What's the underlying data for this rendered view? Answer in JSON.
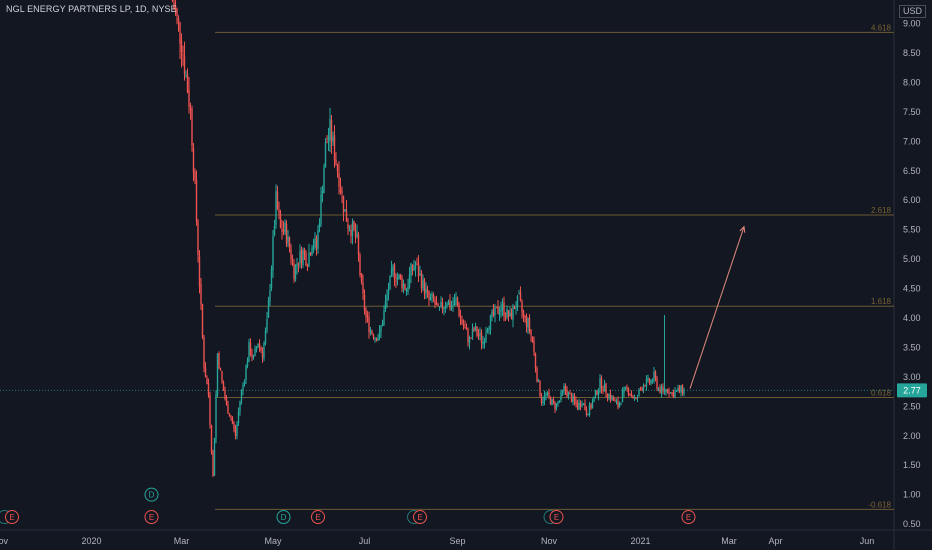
{
  "header": {
    "symbol_title": "NGL ENERGY PARTNERS LP, 1D, NYSE",
    "currency": "USD"
  },
  "colors": {
    "background": "#131722",
    "up": "#26a69a",
    "down": "#ef5350",
    "fib_line": "#6b5a33",
    "fib_label": "#7a6334",
    "last_price_line": "#26a69a",
    "arrow": "#e58a7c",
    "axis_text": "#b2b5be",
    "event_earnings": "#ef5350",
    "event_dividend": "#26a69a"
  },
  "chart_data": {
    "type": "candlestick",
    "symbol": "NGL ENERGY PARTNERS LP",
    "interval": "1D",
    "exchange": "NYSE",
    "ylim": [
      0.4,
      9.4
    ],
    "y_ticks": [
      "9.00",
      "8.50",
      "8.00",
      "7.50",
      "7.00",
      "6.50",
      "6.00",
      "5.50",
      "5.00",
      "4.50",
      "4.00",
      "3.50",
      "3.00",
      "2.50",
      "2.00",
      "1.50",
      "1.00",
      "0.50"
    ],
    "x_ticks": [
      {
        "label": "Nov",
        "day": 0
      },
      {
        "label": "2020",
        "day": 61
      },
      {
        "label": "Mar",
        "day": 121
      },
      {
        "label": "May",
        "day": 182
      },
      {
        "label": "Jul",
        "day": 243
      },
      {
        "label": "Sep",
        "day": 305
      },
      {
        "label": "Nov",
        "day": 366
      },
      {
        "label": "2021",
        "day": 427
      },
      {
        "label": "Mar",
        "day": 486
      },
      {
        "label": "Apr",
        "day": 517
      },
      {
        "label": "Jun",
        "day": 578
      }
    ],
    "x_max_day": 596,
    "last_price": "2.77",
    "fib_levels": [
      {
        "label": "4.618",
        "value": 8.85
      },
      {
        "label": "2.618",
        "value": 5.75
      },
      {
        "label": "1.618",
        "value": 4.2
      },
      {
        "label": "0.618",
        "value": 2.65
      },
      {
        "label": "-0.618",
        "value": 0.75
      }
    ],
    "arrow": {
      "from": {
        "day": 460,
        "value": 2.8
      },
      "to": {
        "day": 496,
        "value": 5.55
      }
    },
    "price_path": [
      [
        115,
        9.4
      ],
      [
        118,
        9.05
      ],
      [
        121,
        8.7
      ],
      [
        124,
        8.1
      ],
      [
        127,
        7.5
      ],
      [
        130,
        6.2
      ],
      [
        133,
        4.6
      ],
      [
        136,
        3.2
      ],
      [
        139,
        2.7
      ],
      [
        142,
        1.3
      ],
      [
        145,
        3.4
      ],
      [
        148,
        2.9
      ],
      [
        151,
        2.5
      ],
      [
        154,
        2.3
      ],
      [
        157,
        2.0
      ],
      [
        160,
        2.6
      ],
      [
        163,
        3.0
      ],
      [
        166,
        3.5
      ],
      [
        169,
        3.3
      ],
      [
        172,
        3.6
      ],
      [
        175,
        3.4
      ],
      [
        178,
        3.9
      ],
      [
        181,
        4.9
      ],
      [
        184,
        6.0
      ],
      [
        187,
        5.5
      ],
      [
        190,
        5.5
      ],
      [
        193,
        5.2
      ],
      [
        196,
        4.8
      ],
      [
        199,
        5.0
      ],
      [
        202,
        5.1
      ],
      [
        205,
        5.0
      ],
      [
        208,
        5.3
      ],
      [
        211,
        5.2
      ],
      [
        214,
        6.0
      ],
      [
        217,
        6.9
      ],
      [
        220,
        7.2
      ],
      [
        223,
        6.8
      ],
      [
        226,
        6.4
      ],
      [
        229,
        5.9
      ],
      [
        232,
        5.6
      ],
      [
        235,
        5.5
      ],
      [
        238,
        5.3
      ],
      [
        241,
        4.5
      ],
      [
        244,
        4.0
      ],
      [
        247,
        3.8
      ],
      [
        250,
        3.7
      ],
      [
        253,
        3.7
      ],
      [
        256,
        4.1
      ],
      [
        259,
        4.5
      ],
      [
        262,
        4.8
      ],
      [
        265,
        4.7
      ],
      [
        268,
        4.6
      ],
      [
        271,
        4.5
      ],
      [
        274,
        4.8
      ],
      [
        277,
        4.9
      ],
      [
        280,
        4.7
      ],
      [
        283,
        4.5
      ],
      [
        286,
        4.3
      ],
      [
        289,
        4.3
      ],
      [
        292,
        4.1
      ],
      [
        295,
        4.2
      ],
      [
        298,
        4.3
      ],
      [
        301,
        4.2
      ],
      [
        304,
        4.3
      ],
      [
        307,
        4.0
      ],
      [
        310,
        3.8
      ],
      [
        313,
        3.6
      ],
      [
        316,
        3.8
      ],
      [
        319,
        3.7
      ],
      [
        322,
        3.6
      ],
      [
        325,
        3.9
      ],
      [
        328,
        4.0
      ],
      [
        331,
        4.1
      ],
      [
        334,
        4.2
      ],
      [
        337,
        4.1
      ],
      [
        340,
        4.0
      ],
      [
        343,
        4.2
      ],
      [
        346,
        4.3
      ],
      [
        349,
        4.0
      ],
      [
        352,
        3.9
      ],
      [
        355,
        3.6
      ],
      [
        358,
        3.0
      ],
      [
        361,
        2.6
      ],
      [
        364,
        2.7
      ],
      [
        367,
        2.6
      ],
      [
        370,
        2.5
      ],
      [
        373,
        2.6
      ],
      [
        376,
        2.8
      ],
      [
        379,
        2.7
      ],
      [
        382,
        2.6
      ],
      [
        385,
        2.5
      ],
      [
        388,
        2.6
      ],
      [
        391,
        2.4
      ],
      [
        394,
        2.5
      ],
      [
        397,
        2.7
      ],
      [
        400,
        2.9
      ],
      [
        403,
        2.8
      ],
      [
        406,
        2.7
      ],
      [
        409,
        2.6
      ],
      [
        412,
        2.5
      ],
      [
        415,
        2.7
      ],
      [
        418,
        2.8
      ],
      [
        421,
        2.7
      ],
      [
        424,
        2.6
      ],
      [
        427,
        2.8
      ],
      [
        430,
        2.9
      ],
      [
        433,
        2.9
      ],
      [
        436,
        3.0
      ],
      [
        439,
        2.8
      ],
      [
        442,
        2.75
      ],
      [
        445,
        2.8
      ],
      [
        448,
        2.7
      ],
      [
        451,
        2.75
      ],
      [
        454,
        2.78
      ],
      [
        457,
        2.77
      ]
    ],
    "wick_outliers": [
      {
        "day": 443,
        "high": 4.05,
        "low": 2.7
      }
    ],
    "events": [
      {
        "type": "earnings",
        "letter": "E",
        "day": 8,
        "value": 0.62
      },
      {
        "type": "earnings",
        "letter": "E",
        "day": 101,
        "value": 0.62
      },
      {
        "type": "dividend",
        "letter": "D",
        "day": 101,
        "value": 1.0
      },
      {
        "type": "dividend",
        "letter": "D",
        "day": 189,
        "value": 0.62
      },
      {
        "type": "earnings",
        "letter": "E",
        "day": 212,
        "value": 0.62
      },
      {
        "type": "earnings",
        "letter": "E",
        "day": 280,
        "value": 0.62
      },
      {
        "type": "earnings",
        "letter": "E",
        "day": 371,
        "value": 0.62
      },
      {
        "type": "earnings",
        "letter": "E",
        "day": 459,
        "value": 0.62
      }
    ],
    "event_ghosts": [
      3,
      276,
      367
    ]
  }
}
